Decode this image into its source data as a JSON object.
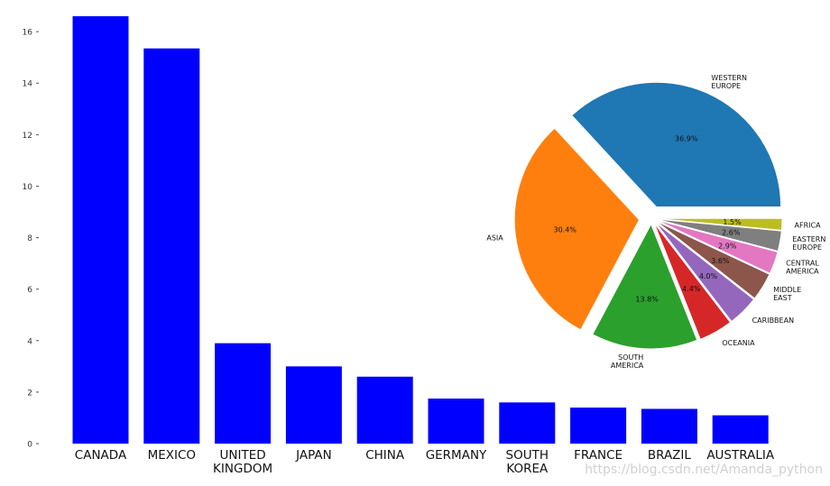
{
  "chart_data": [
    {
      "type": "bar",
      "categories": [
        "CANADA",
        "MEXICO",
        "UNITED\nKINGDOM",
        "JAPAN",
        "CHINA",
        "GERMANY",
        "SOUTH\nKOREA",
        "FRANCE",
        "BRAZIL",
        "AUSTRALIA"
      ],
      "values": [
        16.6,
        15.35,
        3.9,
        3.0,
        2.6,
        1.75,
        1.6,
        1.4,
        1.35,
        1.1
      ],
      "yticks": [
        "0",
        "2",
        "4",
        "6",
        "8",
        "10",
        "12",
        "14",
        "16"
      ],
      "ylim": [
        0,
        16.6
      ],
      "bar_color": "#0000ff",
      "grid": false,
      "title": "",
      "xlabel": "",
      "ylabel": ""
    },
    {
      "type": "pie",
      "labels": [
        "WESTERN\nEUROPE",
        "ASIA",
        "SOUTH\nAMERICA",
        "OCEANIA",
        "CARIBBEAN",
        "MIDDLE\nEAST",
        "CENTRAL\nAMERICA",
        "EASTERN\nEUROPE",
        "AFRICA"
      ],
      "values": [
        36.9,
        30.4,
        13.8,
        4.4,
        4.0,
        3.6,
        2.9,
        2.6,
        1.5
      ],
      "pct_labels": [
        "36.9%",
        "30.4%",
        "13.8%",
        "4.4%",
        "4.0%",
        "3.6%",
        "2.9%",
        "2.6%",
        "1.5%"
      ],
      "explode": [
        0.1,
        0.1,
        0.05,
        0.05,
        0.05,
        0.05,
        0.05,
        0.05,
        0.05
      ],
      "colors": [
        "#1f77b4",
        "#ff7f0e",
        "#2ca02c",
        "#d62728",
        "#9467bd",
        "#8c564b",
        "#e377c2",
        "#7f7f7f",
        "#bcbd22"
      ],
      "start_angle": 0,
      "direction": "counterclockwise",
      "title": ""
    }
  ],
  "watermark": "https://blog.csdn.net/Amanda_python"
}
